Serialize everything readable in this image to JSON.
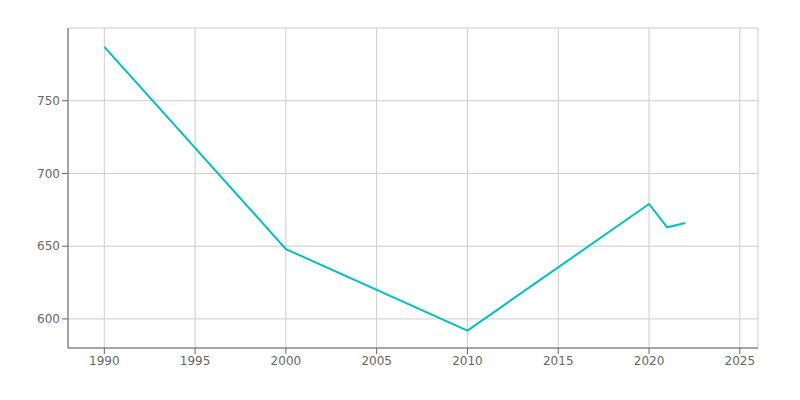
{
  "chart_data": {
    "type": "line",
    "x": [
      1990,
      2000,
      2010,
      2020,
      2021,
      2022
    ],
    "values": [
      787,
      648,
      592,
      679,
      663,
      666
    ],
    "color": "#00C0C0",
    "xlim": [
      1988,
      2026
    ],
    "ylim": [
      580,
      800
    ],
    "xticks": [
      1990,
      1995,
      2000,
      2005,
      2010,
      2015,
      2020,
      2025
    ],
    "yticks": [
      600,
      650,
      700,
      750
    ],
    "grid": true
  }
}
